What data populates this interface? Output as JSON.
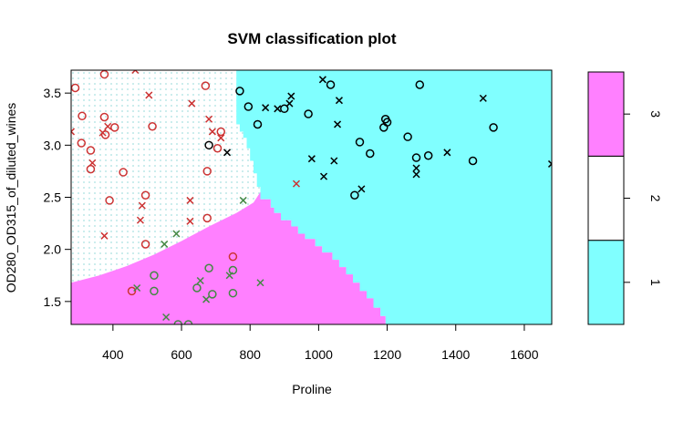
{
  "chart_data": {
    "type": "scatter",
    "title": "SVM classification plot",
    "xlabel": "Proline",
    "ylabel": "OD280_OD315_of_diluted_wines",
    "xlim": [
      278,
      1680
    ],
    "ylim": [
      1.28,
      3.72
    ],
    "xticks": [
      400,
      600,
      800,
      1000,
      1200,
      1400,
      1600
    ],
    "yticks": [
      1.5,
      2.0,
      2.5,
      3.0,
      3.5
    ],
    "xtick_labels": [
      "400",
      "600",
      "800",
      "1000",
      "1200",
      "1400",
      "1600"
    ],
    "ytick_labels": [
      "1.5",
      "2.0",
      "2.5",
      "3.0",
      "3.5"
    ],
    "colors": {
      "class1_region": "#80ffff",
      "class2_region": "#ffffff",
      "class3_region": "#ff80ff",
      "class1_point": "#000000",
      "class2_point": "#cc3333",
      "class3_point": "#448844",
      "class2_grid_dots": "#a8e0e0"
    },
    "regions": {
      "class1_boundary": [
        [
          760,
          3.72
        ],
        [
          760,
          3.2
        ],
        [
          770,
          3.2
        ],
        [
          770,
          3.13
        ],
        [
          780,
          3.13
        ],
        [
          780,
          3.07
        ],
        [
          790,
          3.07
        ],
        [
          790,
          2.97
        ],
        [
          800,
          2.97
        ],
        [
          800,
          2.85
        ],
        [
          810,
          2.85
        ],
        [
          810,
          2.73
        ],
        [
          820,
          2.73
        ],
        [
          820,
          2.6
        ],
        [
          830,
          2.6
        ],
        [
          830,
          2.48
        ],
        [
          860,
          2.48
        ],
        [
          860,
          2.4
        ],
        [
          870,
          2.4
        ],
        [
          870,
          2.35
        ],
        [
          890,
          2.35
        ],
        [
          890,
          2.28
        ],
        [
          920,
          2.28
        ],
        [
          920,
          2.22
        ],
        [
          940,
          2.22
        ],
        [
          940,
          2.15
        ],
        [
          960,
          2.15
        ],
        [
          960,
          2.1
        ],
        [
          990,
          2.1
        ],
        [
          990,
          2.03
        ],
        [
          1010,
          2.03
        ],
        [
          1010,
          1.97
        ],
        [
          1040,
          1.97
        ],
        [
          1040,
          1.9
        ],
        [
          1060,
          1.9
        ],
        [
          1060,
          1.83
        ],
        [
          1080,
          1.83
        ],
        [
          1080,
          1.76
        ],
        [
          1100,
          1.76
        ],
        [
          1100,
          1.68
        ],
        [
          1120,
          1.68
        ],
        [
          1120,
          1.6
        ],
        [
          1140,
          1.6
        ],
        [
          1140,
          1.53
        ],
        [
          1160,
          1.53
        ],
        [
          1160,
          1.44
        ],
        [
          1180,
          1.44
        ],
        [
          1180,
          1.36
        ],
        [
          1195,
          1.36
        ],
        [
          1195,
          1.28
        ]
      ],
      "class3_boundary": [
        [
          278,
          1.68
        ],
        [
          360,
          1.75
        ],
        [
          440,
          1.84
        ],
        [
          520,
          1.95
        ],
        [
          600,
          2.08
        ],
        [
          680,
          2.22
        ],
        [
          760,
          2.35
        ],
        [
          810,
          2.45
        ],
        [
          830,
          2.55
        ]
      ],
      "class_at_top_left": 2
    },
    "series": [
      {
        "name": "1",
        "marker_colors_key": "class1_point",
        "points": [
          {
            "x": 680,
            "y": 3.0,
            "m": "o"
          },
          {
            "x": 733,
            "y": 2.93,
            "m": "x"
          },
          {
            "x": 770,
            "y": 3.52,
            "m": "o"
          },
          {
            "x": 795,
            "y": 3.37,
            "m": "o"
          },
          {
            "x": 822,
            "y": 3.2,
            "m": "o"
          },
          {
            "x": 845,
            "y": 3.36,
            "m": "x"
          },
          {
            "x": 880,
            "y": 3.35,
            "m": "x"
          },
          {
            "x": 900,
            "y": 3.35,
            "m": "o"
          },
          {
            "x": 915,
            "y": 3.4,
            "m": "x"
          },
          {
            "x": 920,
            "y": 3.47,
            "m": "x"
          },
          {
            "x": 970,
            "y": 3.3,
            "m": "o"
          },
          {
            "x": 980,
            "y": 2.87,
            "m": "x"
          },
          {
            "x": 1012,
            "y": 3.63,
            "m": "x"
          },
          {
            "x": 1035,
            "y": 3.58,
            "m": "o"
          },
          {
            "x": 1015,
            "y": 2.7,
            "m": "x"
          },
          {
            "x": 1045,
            "y": 2.85,
            "m": "x"
          },
          {
            "x": 1060,
            "y": 3.43,
            "m": "x"
          },
          {
            "x": 1055,
            "y": 3.2,
            "m": "x"
          },
          {
            "x": 1105,
            "y": 2.52,
            "m": "o"
          },
          {
            "x": 1120,
            "y": 3.03,
            "m": "o"
          },
          {
            "x": 1125,
            "y": 2.58,
            "m": "x"
          },
          {
            "x": 1150,
            "y": 2.92,
            "m": "o"
          },
          {
            "x": 1195,
            "y": 3.25,
            "m": "o"
          },
          {
            "x": 1200,
            "y": 3.22,
            "m": "o"
          },
          {
            "x": 1190,
            "y": 3.17,
            "m": "o"
          },
          {
            "x": 1260,
            "y": 3.08,
            "m": "o"
          },
          {
            "x": 1285,
            "y": 2.88,
            "m": "o"
          },
          {
            "x": 1285,
            "y": 2.78,
            "m": "x"
          },
          {
            "x": 1285,
            "y": 2.72,
            "m": "x"
          },
          {
            "x": 1295,
            "y": 3.58,
            "m": "o"
          },
          {
            "x": 1320,
            "y": 2.9,
            "m": "o"
          },
          {
            "x": 1375,
            "y": 2.93,
            "m": "x"
          },
          {
            "x": 1450,
            "y": 2.85,
            "m": "o"
          },
          {
            "x": 1480,
            "y": 3.45,
            "m": "x"
          },
          {
            "x": 1510,
            "y": 3.17,
            "m": "o"
          },
          {
            "x": 1680,
            "y": 2.82,
            "m": "x"
          }
        ]
      },
      {
        "name": "2",
        "marker_colors_key": "class2_point",
        "points": [
          {
            "x": 278,
            "y": 3.13,
            "m": "x"
          },
          {
            "x": 290,
            "y": 3.55,
            "m": "o"
          },
          {
            "x": 310,
            "y": 3.28,
            "m": "o"
          },
          {
            "x": 308,
            "y": 3.02,
            "m": "o"
          },
          {
            "x": 335,
            "y": 2.95,
            "m": "o"
          },
          {
            "x": 340,
            "y": 2.83,
            "m": "x"
          },
          {
            "x": 335,
            "y": 2.77,
            "m": "o"
          },
          {
            "x": 375,
            "y": 3.68,
            "m": "o"
          },
          {
            "x": 370,
            "y": 3.12,
            "m": "x"
          },
          {
            "x": 375,
            "y": 3.27,
            "m": "o"
          },
          {
            "x": 378,
            "y": 3.1,
            "m": "o"
          },
          {
            "x": 385,
            "y": 3.18,
            "m": "x"
          },
          {
            "x": 405,
            "y": 3.17,
            "m": "o"
          },
          {
            "x": 390,
            "y": 2.47,
            "m": "o"
          },
          {
            "x": 375,
            "y": 2.13,
            "m": "x"
          },
          {
            "x": 430,
            "y": 2.74,
            "m": "o"
          },
          {
            "x": 465,
            "y": 3.72,
            "m": "x"
          },
          {
            "x": 485,
            "y": 2.42,
            "m": "x"
          },
          {
            "x": 480,
            "y": 2.28,
            "m": "x"
          },
          {
            "x": 495,
            "y": 2.52,
            "m": "o"
          },
          {
            "x": 495,
            "y": 2.05,
            "m": "o"
          },
          {
            "x": 505,
            "y": 3.48,
            "m": "x"
          },
          {
            "x": 515,
            "y": 3.18,
            "m": "o"
          },
          {
            "x": 630,
            "y": 3.4,
            "m": "x"
          },
          {
            "x": 625,
            "y": 2.47,
            "m": "x"
          },
          {
            "x": 625,
            "y": 2.27,
            "m": "x"
          },
          {
            "x": 670,
            "y": 3.57,
            "m": "o"
          },
          {
            "x": 680,
            "y": 3.25,
            "m": "x"
          },
          {
            "x": 690,
            "y": 3.13,
            "m": "x"
          },
          {
            "x": 705,
            "y": 2.97,
            "m": "o"
          },
          {
            "x": 715,
            "y": 3.07,
            "m": "x"
          },
          {
            "x": 715,
            "y": 3.13,
            "m": "o"
          },
          {
            "x": 675,
            "y": 2.75,
            "m": "o"
          },
          {
            "x": 675,
            "y": 2.3,
            "m": "o"
          },
          {
            "x": 750,
            "y": 1.93,
            "m": "o"
          },
          {
            "x": 455,
            "y": 1.6,
            "m": "o"
          },
          {
            "x": 935,
            "y": 2.63,
            "m": "x"
          }
        ]
      },
      {
        "name": "3",
        "marker_colors_key": "class3_point",
        "points": [
          {
            "x": 470,
            "y": 1.63,
            "m": "x"
          },
          {
            "x": 520,
            "y": 1.75,
            "m": "o"
          },
          {
            "x": 520,
            "y": 1.6,
            "m": "o"
          },
          {
            "x": 550,
            "y": 2.05,
            "m": "x"
          },
          {
            "x": 555,
            "y": 1.35,
            "m": "x"
          },
          {
            "x": 585,
            "y": 2.15,
            "m": "x"
          },
          {
            "x": 590,
            "y": 1.28,
            "m": "o"
          },
          {
            "x": 620,
            "y": 1.28,
            "m": "o"
          },
          {
            "x": 645,
            "y": 1.63,
            "m": "o"
          },
          {
            "x": 655,
            "y": 1.7,
            "m": "x"
          },
          {
            "x": 672,
            "y": 1.52,
            "m": "x"
          },
          {
            "x": 680,
            "y": 1.82,
            "m": "o"
          },
          {
            "x": 690,
            "y": 1.57,
            "m": "o"
          },
          {
            "x": 740,
            "y": 1.75,
            "m": "x"
          },
          {
            "x": 750,
            "y": 1.8,
            "m": "o"
          },
          {
            "x": 750,
            "y": 1.58,
            "m": "o"
          },
          {
            "x": 780,
            "y": 2.47,
            "m": "x"
          },
          {
            "x": 830,
            "y": 1.68,
            "m": "x"
          }
        ]
      }
    ],
    "legend": {
      "position": "right",
      "levels": [
        "1",
        "2",
        "3"
      ],
      "fill_keys": [
        "class1_region",
        "class2_region",
        "class3_region"
      ]
    }
  }
}
